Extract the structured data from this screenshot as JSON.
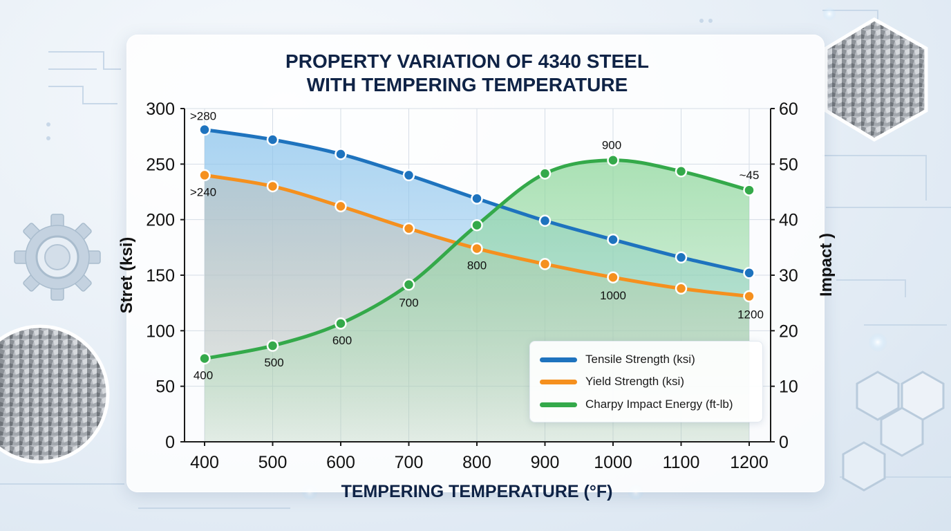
{
  "chart_data": {
    "type": "line",
    "title": "PROPERTY VARIATION OF 4340 STEEL\nWITH TEMPERING TEMPERATURE",
    "xlabel": "TEMPERING TEMPERATURE (°F)",
    "ylabel_left": "Stret (ksi)",
    "ylabel_right": "Impact )",
    "x": [
      400,
      500,
      600,
      700,
      800,
      900,
      1000,
      1100,
      1200
    ],
    "xlim": [
      400,
      1200
    ],
    "ylim_left": [
      0,
      300
    ],
    "ylim_right": [
      0,
      60
    ],
    "yticks_left": [
      0,
      50,
      100,
      150,
      200,
      250,
      300
    ],
    "yticks_right": [
      0,
      10,
      20,
      30,
      40,
      50,
      60
    ],
    "grid": true,
    "legend_position": "bottom-right",
    "series": [
      {
        "name": "Tensile Strength (ksi)",
        "axis": "left",
        "color": "#1e73be",
        "fill": "#8cc4ec",
        "values": [
          281,
          272,
          259,
          240,
          219,
          199,
          182,
          166,
          152
        ]
      },
      {
        "name": "Yield Strength (ksi)",
        "axis": "left",
        "color": "#f5901e",
        "fill": "#f9c38a",
        "values": [
          240,
          230,
          212,
          192,
          174,
          160,
          148,
          138,
          131
        ]
      },
      {
        "name": "Charpy Impact Energy (ft-lb)",
        "axis": "right",
        "color": "#34a94a",
        "fill": "#8fd79c",
        "values": [
          15,
          17.3,
          21.3,
          28.3,
          39,
          48.3,
          50.7,
          48.7,
          45.3
        ]
      }
    ],
    "annotations": [
      {
        "text": ">280",
        "series": 0,
        "index": 0,
        "dx": -2,
        "dy": -20
      },
      {
        "text": ">240",
        "series": 1,
        "index": 0,
        "dx": -2,
        "dy": 24
      },
      {
        "text": "400",
        "series": 2,
        "index": 0,
        "dx": -2,
        "dy": 24
      },
      {
        "text": "500",
        "series": 2,
        "index": 1,
        "dx": 2,
        "dy": 24
      },
      {
        "text": "600",
        "series": 2,
        "index": 2,
        "dx": 2,
        "dy": 24
      },
      {
        "text": "700",
        "series": 2,
        "index": 3,
        "dx": 0,
        "dy": 26
      },
      {
        "text": "800",
        "series": 1,
        "index": 4,
        "dx": 0,
        "dy": 24
      },
      {
        "text": "1000",
        "series": 1,
        "index": 6,
        "dx": 0,
        "dy": 26
      },
      {
        "text": "1200",
        "series": 1,
        "index": 8,
        "dx": 2,
        "dy": 26
      },
      {
        "text": "900",
        "series": 2,
        "index": 6,
        "dx": -2,
        "dy": -22
      },
      {
        "text": "~45",
        "series": 2,
        "index": 8,
        "dx": 0,
        "dy": -22
      }
    ]
  }
}
